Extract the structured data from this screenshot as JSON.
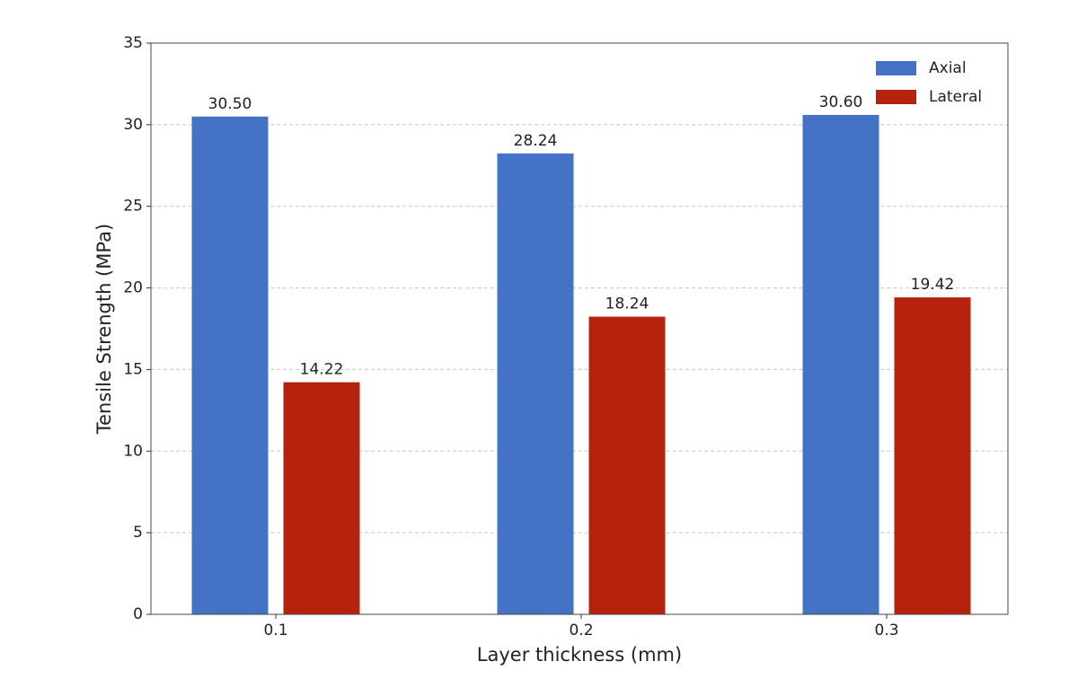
{
  "chart_data": {
    "type": "bar",
    "xlabel": "Layer thickness (mm)",
    "ylabel": "Tensile Strength (MPa)",
    "categories": [
      "0.1",
      "0.2",
      "0.3"
    ],
    "series": [
      {
        "name": "Axial",
        "color": "#4472c4",
        "values": [
          30.5,
          28.24,
          30.6
        ],
        "value_labels": [
          "30.50",
          "28.24",
          "30.60"
        ]
      },
      {
        "name": "Lateral",
        "color": "#b5230e",
        "values": [
          14.22,
          18.24,
          19.42
        ],
        "value_labels": [
          "14.22",
          "18.24",
          "19.42"
        ]
      }
    ],
    "ylim": [
      0,
      35
    ],
    "yticks": [
      0,
      5,
      10,
      15,
      20,
      25,
      30,
      35
    ],
    "grid": true,
    "legend": "upper right"
  }
}
